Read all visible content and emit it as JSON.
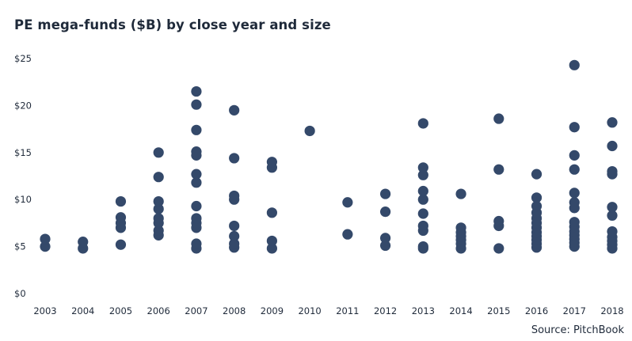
{
  "title": "PE mega-funds ($B) by close year and size",
  "source": "Source: PitchBook",
  "chart_data": {
    "type": "scatter",
    "title": "PE mega-funds ($B) by close year and size",
    "xlabel": "",
    "ylabel": "",
    "ylim": [
      0,
      25
    ],
    "yticks": [
      0,
      5,
      10,
      15,
      20,
      25
    ],
    "ytick_labels": [
      "$0",
      "$5",
      "$10",
      "$15",
      "$20",
      "$25"
    ],
    "categories": [
      "2003",
      "2004",
      "2005",
      "2006",
      "2007",
      "2008",
      "2009",
      "2010",
      "2011",
      "2012",
      "2013",
      "2014",
      "2015",
      "2016",
      "2017",
      "2018"
    ],
    "grid": false,
    "marker_color": "#34496a",
    "points": [
      {
        "x": "2003",
        "y": [
          5.0,
          5.8
        ]
      },
      {
        "x": "2004",
        "y": [
          4.8,
          5.5
        ]
      },
      {
        "x": "2005",
        "y": [
          5.2,
          7.0,
          7.5,
          8.1,
          9.8
        ]
      },
      {
        "x": "2006",
        "y": [
          6.2,
          6.7,
          7.5,
          8.0,
          9.0,
          9.8,
          12.4,
          15.0
        ]
      },
      {
        "x": "2007",
        "y": [
          4.8,
          5.3,
          7.0,
          7.5,
          8.0,
          9.3,
          11.8,
          12.7,
          14.7,
          15.1,
          17.4,
          20.1,
          21.5
        ]
      },
      {
        "x": "2008",
        "y": [
          4.9,
          5.3,
          6.1,
          7.2,
          10.0,
          10.4,
          14.4,
          19.5
        ]
      },
      {
        "x": "2009",
        "y": [
          4.8,
          5.6,
          8.6,
          13.4,
          14.0
        ]
      },
      {
        "x": "2010",
        "y": [
          17.3
        ]
      },
      {
        "x": "2011",
        "y": [
          6.3,
          9.7
        ]
      },
      {
        "x": "2012",
        "y": [
          5.1,
          5.9,
          8.7,
          10.6
        ]
      },
      {
        "x": "2013",
        "y": [
          4.8,
          5.0,
          6.7,
          7.2,
          8.5,
          10.0,
          10.9,
          12.6,
          13.4,
          18.1
        ]
      },
      {
        "x": "2014",
        "y": [
          4.8,
          5.3,
          5.7,
          6.1,
          6.5,
          7.0,
          10.6
        ]
      },
      {
        "x": "2015",
        "y": [
          4.8,
          7.2,
          7.7,
          13.2,
          18.6
        ]
      },
      {
        "x": "2016",
        "y": [
          4.9,
          5.3,
          5.7,
          6.1,
          6.5,
          7.0,
          7.5,
          8.0,
          8.6,
          9.3,
          10.2,
          12.7
        ]
      },
      {
        "x": "2017",
        "y": [
          5.0,
          5.4,
          5.8,
          6.2,
          6.6,
          7.1,
          7.6,
          9.1,
          9.7,
          10.7,
          13.2,
          14.7,
          17.7,
          24.3
        ]
      },
      {
        "x": "2018",
        "y": [
          4.8,
          5.2,
          5.6,
          6.0,
          6.6,
          8.3,
          9.2,
          12.7,
          13.0,
          15.7,
          18.2
        ]
      }
    ]
  }
}
